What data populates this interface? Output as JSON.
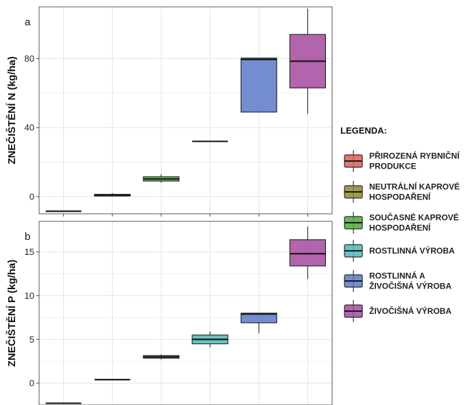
{
  "chart_data": [
    {
      "type": "box",
      "panel_label": "a",
      "ylabel": "ZNEČIŠTĚNÍ N (kg/ha)",
      "ylim": [
        -10,
        110
      ],
      "yticks": [
        0,
        40,
        80
      ],
      "grid": true,
      "boxes": [
        {
          "series": 0,
          "whisker_low": -8.5,
          "q1": -8.5,
          "median": -8.5,
          "q3": -8.5,
          "whisker_high": -8.5
        },
        {
          "series": 1,
          "whisker_low": 0,
          "q1": 0.3,
          "median": 0.8,
          "q3": 1.3,
          "whisker_high": 2
        },
        {
          "series": 2,
          "whisker_low": 8,
          "q1": 9,
          "median": 10.2,
          "q3": 11.5,
          "whisker_high": 13
        },
        {
          "series": 3,
          "whisker_low": 32,
          "q1": 32,
          "median": 32,
          "q3": 32,
          "whisker_high": 32
        },
        {
          "series": 4,
          "whisker_low": 49,
          "q1": 49,
          "median": 79.5,
          "q3": 80.3,
          "whisker_high": 80.3
        },
        {
          "series": 5,
          "whisker_low": 48,
          "q1": 63,
          "median": 78.5,
          "q3": 94,
          "whisker_high": 109
        }
      ]
    },
    {
      "type": "box",
      "panel_label": "b",
      "ylabel": "ZNEČIŠTĚNÍ P (kg/ha)",
      "ylim": [
        -2.5,
        18.5
      ],
      "yticks": [
        0,
        5,
        10,
        15
      ],
      "grid": true,
      "boxes": [
        {
          "series": 0,
          "whisker_low": -2.3,
          "q1": -2.3,
          "median": -2.3,
          "q3": -2.3,
          "whisker_high": -2.3
        },
        {
          "series": 1,
          "whisker_low": 0.4,
          "q1": 0.4,
          "median": 0.4,
          "q3": 0.4,
          "whisker_high": 0.4
        },
        {
          "series": 2,
          "whisker_low": 2.7,
          "q1": 2.85,
          "median": 3,
          "q3": 3.15,
          "whisker_high": 3.3
        },
        {
          "series": 3,
          "whisker_low": 4.1,
          "q1": 4.5,
          "median": 5,
          "q3": 5.5,
          "whisker_high": 5.9
        },
        {
          "series": 4,
          "whisker_low": 5.7,
          "q1": 6.9,
          "median": 7.9,
          "q3": 8,
          "whisker_high": 8
        },
        {
          "series": 5,
          "whisker_low": 11.9,
          "q1": 13.4,
          "median": 14.8,
          "q3": 16.4,
          "whisker_high": 17.9
        }
      ]
    }
  ],
  "legend": {
    "title": "LEGENDA:",
    "placement": "right",
    "items": [
      {
        "lines": [
          "PŘIROZENÁ RYBNIČNÍ",
          "PRODUKCE"
        ],
        "color": "#d9605a"
      },
      {
        "lines": [
          "NEUTRÁLNÍ KAPROVÉ",
          "HOSPODAŘENÍ"
        ],
        "color": "#8e8a2a"
      },
      {
        "lines": [
          "SOUČASNÉ KAPROVÉ",
          "HOSPODAŘENÍ"
        ],
        "color": "#4fa83c"
      },
      {
        "lines": [
          "ROSTLINNÁ VÝROBA"
        ],
        "color": "#4fb8b8"
      },
      {
        "lines": [
          "ROSTLINNÁ A",
          "ŽIVOČIŠNÁ VÝROBA"
        ],
        "color": "#5b79c8"
      },
      {
        "lines": [
          "ŽIVOČIŠNÁ VÝROBA"
        ],
        "color": "#a54a9e"
      }
    ]
  }
}
